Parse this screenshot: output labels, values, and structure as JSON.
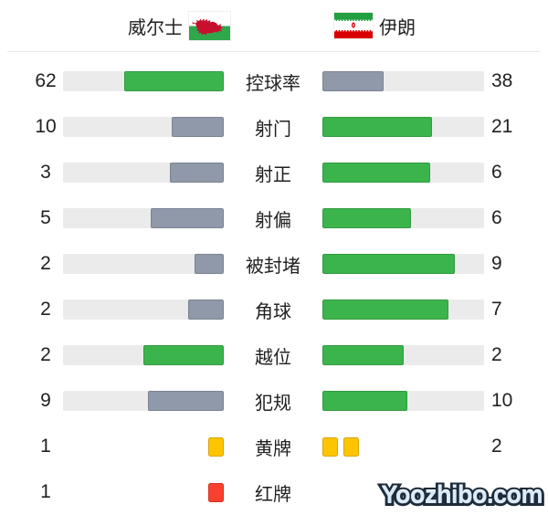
{
  "header": {
    "home_team": "威尔士",
    "away_team": "伊朗"
  },
  "palette": {
    "leader_bar": "#3cb44c",
    "trailer_bar": "#9099aa",
    "track": "#ebebeb",
    "yellow_card": "#fdc500",
    "yellow_card_border": "#d9a406",
    "red_card": "#f8402e",
    "red_card_border": "#d63322",
    "text": "#212121",
    "divider": "#e8e8e8"
  },
  "stats": [
    {
      "label": "控球率",
      "home": 62,
      "away": 38,
      "type": "bar"
    },
    {
      "label": "射门",
      "home": 10,
      "away": 21,
      "type": "bar"
    },
    {
      "label": "射正",
      "home": 3,
      "away": 6,
      "type": "bar"
    },
    {
      "label": "射偏",
      "home": 5,
      "away": 6,
      "type": "bar"
    },
    {
      "label": "被封堵",
      "home": 2,
      "away": 9,
      "type": "bar"
    },
    {
      "label": "角球",
      "home": 2,
      "away": 7,
      "type": "bar"
    },
    {
      "label": "越位",
      "home": 2,
      "away": 2,
      "type": "bar"
    },
    {
      "label": "犯规",
      "home": 9,
      "away": 10,
      "type": "bar"
    },
    {
      "label": "黄牌",
      "home": 1,
      "away": 2,
      "type": "cards",
      "card": "yellow"
    },
    {
      "label": "红牌",
      "home": 1,
      "away": null,
      "type": "cards",
      "card": "red"
    }
  ],
  "watermark": {
    "text": "Yoozhibo.com"
  },
  "chart_data": {
    "type": "bar",
    "categories": [
      "控球率",
      "射门",
      "射正",
      "射偏",
      "被封堵",
      "角球",
      "越位",
      "犯规",
      "黄牌",
      "红牌"
    ],
    "series": [
      {
        "name": "威尔士",
        "values": [
          62,
          10,
          3,
          5,
          2,
          2,
          2,
          9,
          1,
          1
        ]
      },
      {
        "name": "伊朗",
        "values": [
          38,
          21,
          6,
          6,
          9,
          7,
          2,
          10,
          2,
          null
        ]
      }
    ],
    "layout": "paired horizontal bars, labels centered, fill fraction = value/(home+away), leader colored green, trailer gray, ties green"
  }
}
